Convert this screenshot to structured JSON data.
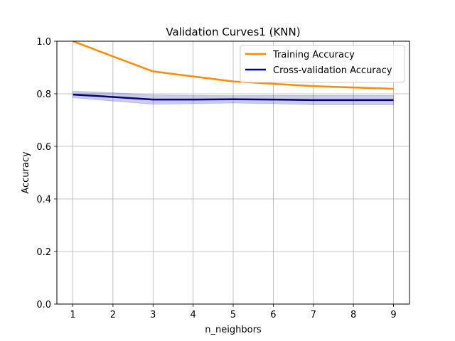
{
  "chart_data": {
    "type": "line",
    "title": "Validation Curves1 (KNN)",
    "xlabel": "n_neighbors",
    "ylabel": "Accuracy",
    "x": [
      1,
      2,
      3,
      4,
      5,
      6,
      7,
      8,
      9
    ],
    "xlim": [
      0.6,
      9.4
    ],
    "ylim": [
      0.0,
      1.0
    ],
    "xticks": [
      "1",
      "2",
      "3",
      "4",
      "5",
      "6",
      "7",
      "8",
      "9"
    ],
    "yticks": [
      "0.0",
      "0.2",
      "0.4",
      "0.6",
      "0.8",
      "1.0"
    ],
    "grid": true,
    "legend_position": "top-right",
    "series": [
      {
        "name": "Training Accuracy",
        "color": "#ff8c00",
        "values": [
          1.0,
          0.942,
          0.885,
          0.866,
          0.847,
          0.838,
          0.829,
          0.824,
          0.819
        ],
        "band_lower": [
          1.0,
          0.941,
          0.883,
          0.864,
          0.845,
          0.836,
          0.827,
          0.822,
          0.817
        ],
        "band_upper": [
          1.0,
          0.943,
          0.887,
          0.868,
          0.849,
          0.84,
          0.831,
          0.826,
          0.821
        ]
      },
      {
        "name": "Cross-validation Accuracy",
        "color": "#000080",
        "band_color": "#000080",
        "values": [
          0.797,
          0.788,
          0.778,
          0.778,
          0.779,
          0.778,
          0.776,
          0.776,
          0.776
        ],
        "band_lower": [
          0.785,
          0.772,
          0.76,
          0.762,
          0.765,
          0.762,
          0.758,
          0.758,
          0.758
        ],
        "band_upper": [
          0.81,
          0.804,
          0.796,
          0.794,
          0.793,
          0.794,
          0.794,
          0.794,
          0.794
        ]
      }
    ]
  }
}
